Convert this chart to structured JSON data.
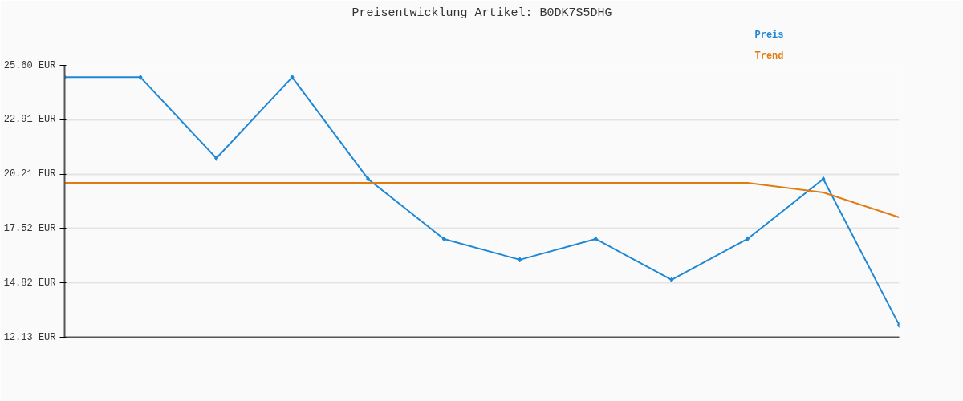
{
  "chart_data": {
    "type": "line",
    "title": "Preisentwicklung Artikel: B0DK7S5DHG",
    "categories": [
      null,
      null,
      null,
      null,
      null,
      null,
      null,
      null,
      null,
      null,
      null,
      null
    ],
    "series": [
      {
        "name": "Preis",
        "color": "#1f88d6",
        "marker": "diamond",
        "values": [
          25.01,
          25.01,
          21.0,
          25.01,
          19.97,
          17.0,
          15.97,
          17.0,
          14.98,
          17.0,
          19.97,
          12.73
        ]
      },
      {
        "name": "Trend",
        "color": "#e07b10",
        "marker": "none",
        "values": [
          19.78,
          19.78,
          19.78,
          19.78,
          19.78,
          19.78,
          19.78,
          19.78,
          19.78,
          19.78,
          19.3,
          18.07
        ]
      }
    ],
    "ylim": [
      12.13,
      25.6
    ],
    "yticks": [
      {
        "value": 12.13,
        "label": "12.13 EUR"
      },
      {
        "value": 14.82,
        "label": "14.82 EUR"
      },
      {
        "value": 17.52,
        "label": "17.52 EUR"
      },
      {
        "value": 20.21,
        "label": "20.21 EUR"
      },
      {
        "value": 22.91,
        "label": "22.91 EUR"
      },
      {
        "value": 25.6,
        "label": "25.60 EUR"
      }
    ],
    "grid": "y",
    "tick_labels": "y",
    "line_style": "solid"
  }
}
